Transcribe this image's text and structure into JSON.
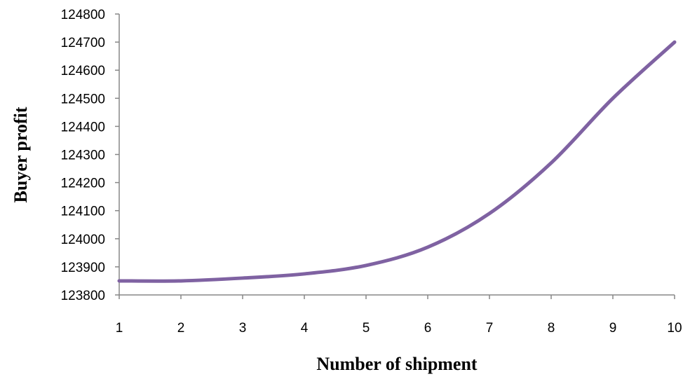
{
  "chart_data": {
    "type": "line",
    "title": "",
    "xlabel": "Number of shipment",
    "ylabel": "Buyer profit",
    "x": [
      1,
      2,
      3,
      4,
      5,
      6,
      7,
      8,
      9,
      10
    ],
    "series": [
      {
        "values": [
          123850,
          123850,
          123860,
          123875,
          123905,
          123970,
          124090,
          124270,
          124500,
          124700
        ],
        "color": "#7F62A2"
      }
    ],
    "xlim": [
      1,
      10
    ],
    "ylim": [
      123800,
      124800
    ],
    "xticks": [
      "1",
      "2",
      "3",
      "4",
      "5",
      "6",
      "7",
      "8",
      "9",
      "10"
    ],
    "yticks": [
      "123800",
      "123900",
      "124000",
      "124100",
      "124200",
      "124300",
      "124400",
      "124500",
      "124600",
      "124700",
      "124800"
    ],
    "grid": false,
    "legend": "none",
    "smooth": true
  }
}
